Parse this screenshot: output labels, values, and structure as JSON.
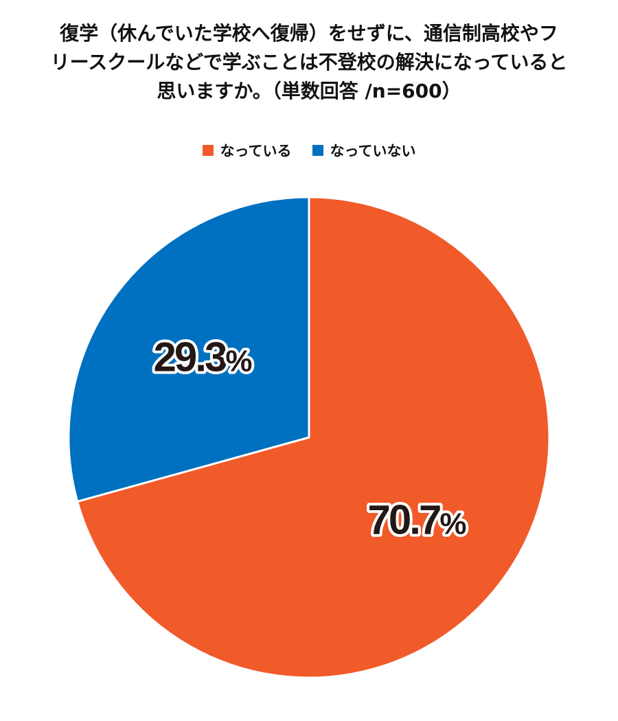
{
  "title": {
    "line1": "復学（休んでいた学校へ復帰）をせずに、通信制高校やフ",
    "line2": "リースクールなどで学ぶことは不登校の解決になっていると",
    "line3": "思いますか。（単数回答 /n=600）"
  },
  "legend": [
    {
      "label": "なっている",
      "color": "#F15A29"
    },
    {
      "label": "なっていない",
      "color": "#0070C0"
    }
  ],
  "chart_data": {
    "type": "pie",
    "title": "復学（休んでいた学校へ復帰）をせずに、通信制高校やフリースクールなどで学ぶことは不登校の解決になっていると思いますか。（単数回答 /n=600）",
    "n": 600,
    "start": "12 o'clock",
    "direction": "clockwise",
    "slices": [
      {
        "label": "なっている",
        "value": 70.7,
        "display": "70.7",
        "unit": "%",
        "color": "#F15A29"
      },
      {
        "label": "なっていない",
        "value": 29.3,
        "display": "29.3",
        "unit": "%",
        "color": "#0070C0"
      }
    ]
  }
}
